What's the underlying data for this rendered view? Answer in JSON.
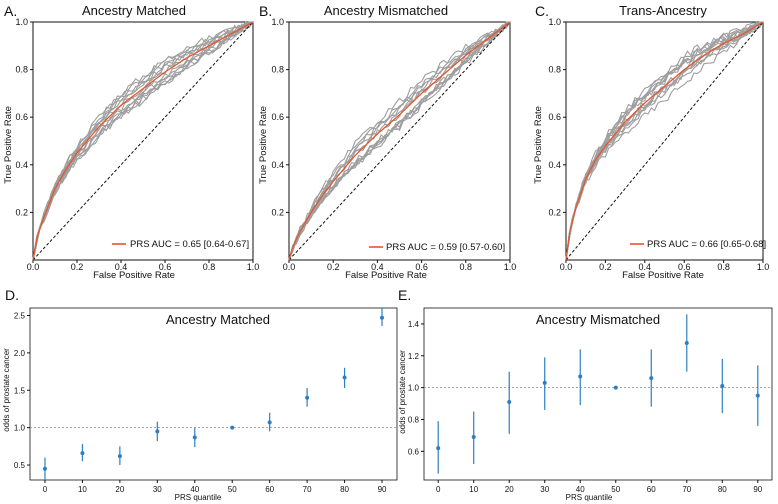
{
  "colors": {
    "roc_grey": "#9e9e9e",
    "roc_red": "#e4572e",
    "point_blue": "#2e7fbf",
    "ref_line": "#888888"
  },
  "chart_data": [
    {
      "id": "A",
      "letter": "A.",
      "type": "line",
      "title": "Ancestry Matched",
      "xlabel": "False Positive Rate",
      "ylabel": "True Positive Rate",
      "xlim": [
        0,
        1
      ],
      "ylim": [
        0,
        1
      ],
      "xticks": [
        "0.0",
        "0.2",
        "0.4",
        "0.6",
        "0.8",
        "1.0"
      ],
      "yticks": [
        "0.2",
        "0.4",
        "0.6",
        "0.8",
        "1.0"
      ],
      "legend": "PRS AUC = 0.65 [0.64-0.67]",
      "legend_loc": "lower-right",
      "series": [
        {
          "name": "PRS",
          "x": [
            0,
            0.02,
            0.05,
            0.1,
            0.15,
            0.2,
            0.3,
            0.4,
            0.5,
            0.6,
            0.7,
            0.8,
            0.9,
            1.0
          ],
          "y": [
            0,
            0.1,
            0.18,
            0.3,
            0.38,
            0.45,
            0.56,
            0.65,
            0.72,
            0.79,
            0.85,
            0.9,
            0.95,
            1.0
          ]
        }
      ],
      "bootstrap_count": 12,
      "diagonal": true
    },
    {
      "id": "B",
      "letter": "B.",
      "type": "line",
      "title": "Ancestry Mismatched",
      "xlabel": "False Positive Rate",
      "ylabel": "True Positive Rate",
      "xlim": [
        0,
        1
      ],
      "ylim": [
        0,
        1
      ],
      "xticks": [
        "0.0",
        "0.2",
        "0.4",
        "0.6",
        "0.8",
        "1.0"
      ],
      "yticks": [
        "0.2",
        "0.4",
        "0.6",
        "0.8",
        "1.0"
      ],
      "legend": "PRS AUC = 0.59 [0.57-0.60]",
      "legend_loc": "lower-right",
      "series": [
        {
          "name": "PRS",
          "x": [
            0,
            0.02,
            0.05,
            0.1,
            0.15,
            0.2,
            0.3,
            0.4,
            0.5,
            0.6,
            0.7,
            0.8,
            0.9,
            1.0
          ],
          "y": [
            0,
            0.06,
            0.12,
            0.2,
            0.27,
            0.33,
            0.44,
            0.53,
            0.61,
            0.7,
            0.78,
            0.86,
            0.93,
            1.0
          ]
        }
      ],
      "bootstrap_count": 12,
      "diagonal": true
    },
    {
      "id": "C",
      "letter": "C.",
      "type": "line",
      "title": "Trans-Ancestry",
      "xlabel": "False Positive Rate",
      "ylabel": "True Positive Rate",
      "xlim": [
        0,
        1
      ],
      "ylim": [
        0,
        1
      ],
      "xticks": [
        "0.0",
        "0.2",
        "0.4",
        "0.6",
        "0.8",
        "1.0"
      ],
      "yticks": [
        "0.2",
        "0.4",
        "0.6",
        "0.8",
        "1.0"
      ],
      "legend": "PRS AUC = 0.66 [0.65-0.68]",
      "legend_loc": "lower-right",
      "series": [
        {
          "name": "PRS",
          "x": [
            0,
            0.02,
            0.05,
            0.1,
            0.15,
            0.2,
            0.3,
            0.4,
            0.5,
            0.6,
            0.7,
            0.8,
            0.9,
            1.0
          ],
          "y": [
            0,
            0.12,
            0.22,
            0.34,
            0.42,
            0.48,
            0.58,
            0.66,
            0.73,
            0.8,
            0.86,
            0.91,
            0.95,
            1.0
          ]
        }
      ],
      "bootstrap_count": 12,
      "diagonal": true
    },
    {
      "id": "D",
      "letter": "D.",
      "type": "scatter",
      "title": "Ancestry Matched",
      "xlabel": "PRS quantile",
      "ylabel": "odds of prostate cancer",
      "xlim": [
        -4,
        94
      ],
      "ylim": [
        0.3,
        2.6
      ],
      "categories": [
        "0",
        "10",
        "20",
        "30",
        "40",
        "50",
        "60",
        "70",
        "80",
        "90"
      ],
      "x": [
        0,
        10,
        20,
        30,
        40,
        50,
        60,
        70,
        80,
        90
      ],
      "y": [
        0.45,
        0.66,
        0.62,
        0.95,
        0.87,
        1.0,
        1.07,
        1.4,
        1.67,
        2.47
      ],
      "err_low": [
        0.3,
        0.55,
        0.5,
        0.82,
        0.74,
        1.0,
        0.95,
        1.28,
        1.53,
        2.36
      ],
      "err_high": [
        0.6,
        0.78,
        0.75,
        1.08,
        1.0,
        1.0,
        1.2,
        1.53,
        1.8,
        2.6
      ],
      "yticks": [
        "0.5",
        "1.0",
        "1.5",
        "2.0",
        "2.5"
      ],
      "ytick_values": [
        0.5,
        1.0,
        1.5,
        2.0,
        2.5
      ],
      "reference_line": 1.0
    },
    {
      "id": "E",
      "letter": "E.",
      "type": "scatter",
      "title": "Ancestry Mismatched",
      "xlabel": "PRS quantile",
      "ylabel": "odds of prostate cancer",
      "xlim": [
        -4,
        94
      ],
      "ylim": [
        0.42,
        1.5
      ],
      "categories": [
        "0",
        "10",
        "20",
        "30",
        "40",
        "50",
        "60",
        "70",
        "80",
        "90"
      ],
      "x": [
        0,
        10,
        20,
        30,
        40,
        50,
        60,
        70,
        80,
        90
      ],
      "y": [
        0.62,
        0.69,
        0.91,
        1.03,
        1.07,
        1.0,
        1.06,
        1.28,
        1.01,
        0.95
      ],
      "err_low": [
        0.46,
        0.52,
        0.71,
        0.86,
        0.89,
        1.0,
        0.88,
        1.1,
        0.84,
        0.76
      ],
      "err_high": [
        0.79,
        0.85,
        1.1,
        1.19,
        1.24,
        1.0,
        1.24,
        1.46,
        1.18,
        1.14
      ],
      "yticks": [
        "0.6",
        "0.8",
        "1.0",
        "1.2",
        "1.4"
      ],
      "ytick_values": [
        0.6,
        0.8,
        1.0,
        1.2,
        1.4
      ],
      "reference_line": 1.0
    }
  ]
}
